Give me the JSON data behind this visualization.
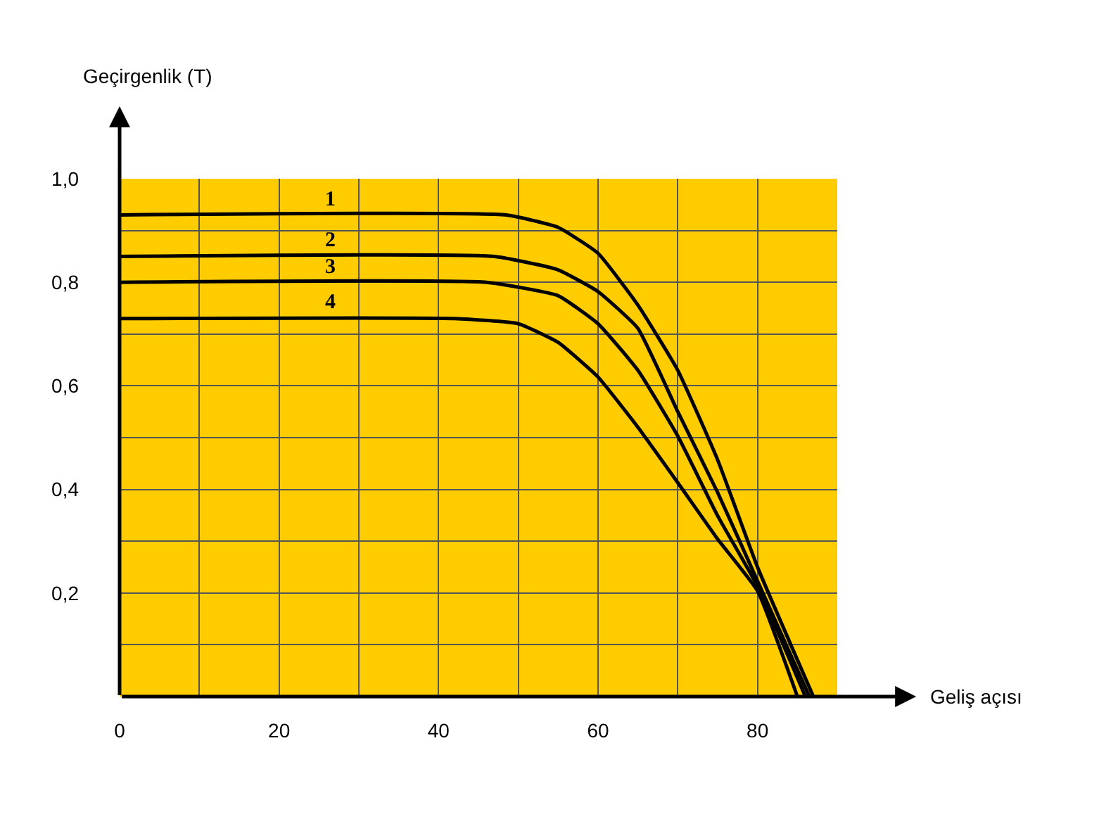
{
  "chart_data": {
    "type": "line",
    "xlabel": "Geliş açısı",
    "ylabel": "Geçirgenlik (T)",
    "xlim": [
      0,
      90
    ],
    "ylim": [
      0,
      1.0
    ],
    "xticks": [
      0,
      20,
      40,
      60,
      80
    ],
    "yticks": [
      {
        "value": 0.2,
        "label": "0,2"
      },
      {
        "value": 0.4,
        "label": "0,4"
      },
      {
        "value": 0.6,
        "label": "0,6"
      },
      {
        "value": 0.8,
        "label": "0,8"
      },
      {
        "value": 1.0,
        "label": "1,0"
      }
    ],
    "grid": true,
    "legend": false,
    "marker": "none",
    "line_style": "solid",
    "series": [
      {
        "name": "1",
        "color": "#000000",
        "x": [
          0,
          48.5,
          55,
          60,
          65,
          70,
          75,
          80,
          87
        ],
        "values": [
          0.93,
          0.93,
          0.906,
          0.856,
          0.756,
          0.63,
          0.457,
          0.25,
          0
        ]
      },
      {
        "name": "2",
        "color": "#000000",
        "x": [
          0,
          47,
          55,
          60,
          65,
          70,
          75,
          80,
          86.5
        ],
        "values": [
          0.85,
          0.85,
          0.824,
          0.782,
          0.711,
          0.55,
          0.394,
          0.223,
          0
        ]
      },
      {
        "name": "3",
        "color": "#000000",
        "x": [
          0,
          46,
          55,
          60,
          65,
          70,
          75,
          80,
          86
        ],
        "values": [
          0.8,
          0.8,
          0.774,
          0.72,
          0.63,
          0.503,
          0.349,
          0.213,
          0
        ]
      },
      {
        "name": "4",
        "color": "#000000",
        "x": [
          0,
          42,
          50,
          55,
          60,
          65,
          70,
          75,
          80,
          85
        ],
        "values": [
          0.73,
          0.73,
          0.72,
          0.684,
          0.617,
          0.52,
          0.413,
          0.304,
          0.204,
          0
        ]
      }
    ]
  }
}
